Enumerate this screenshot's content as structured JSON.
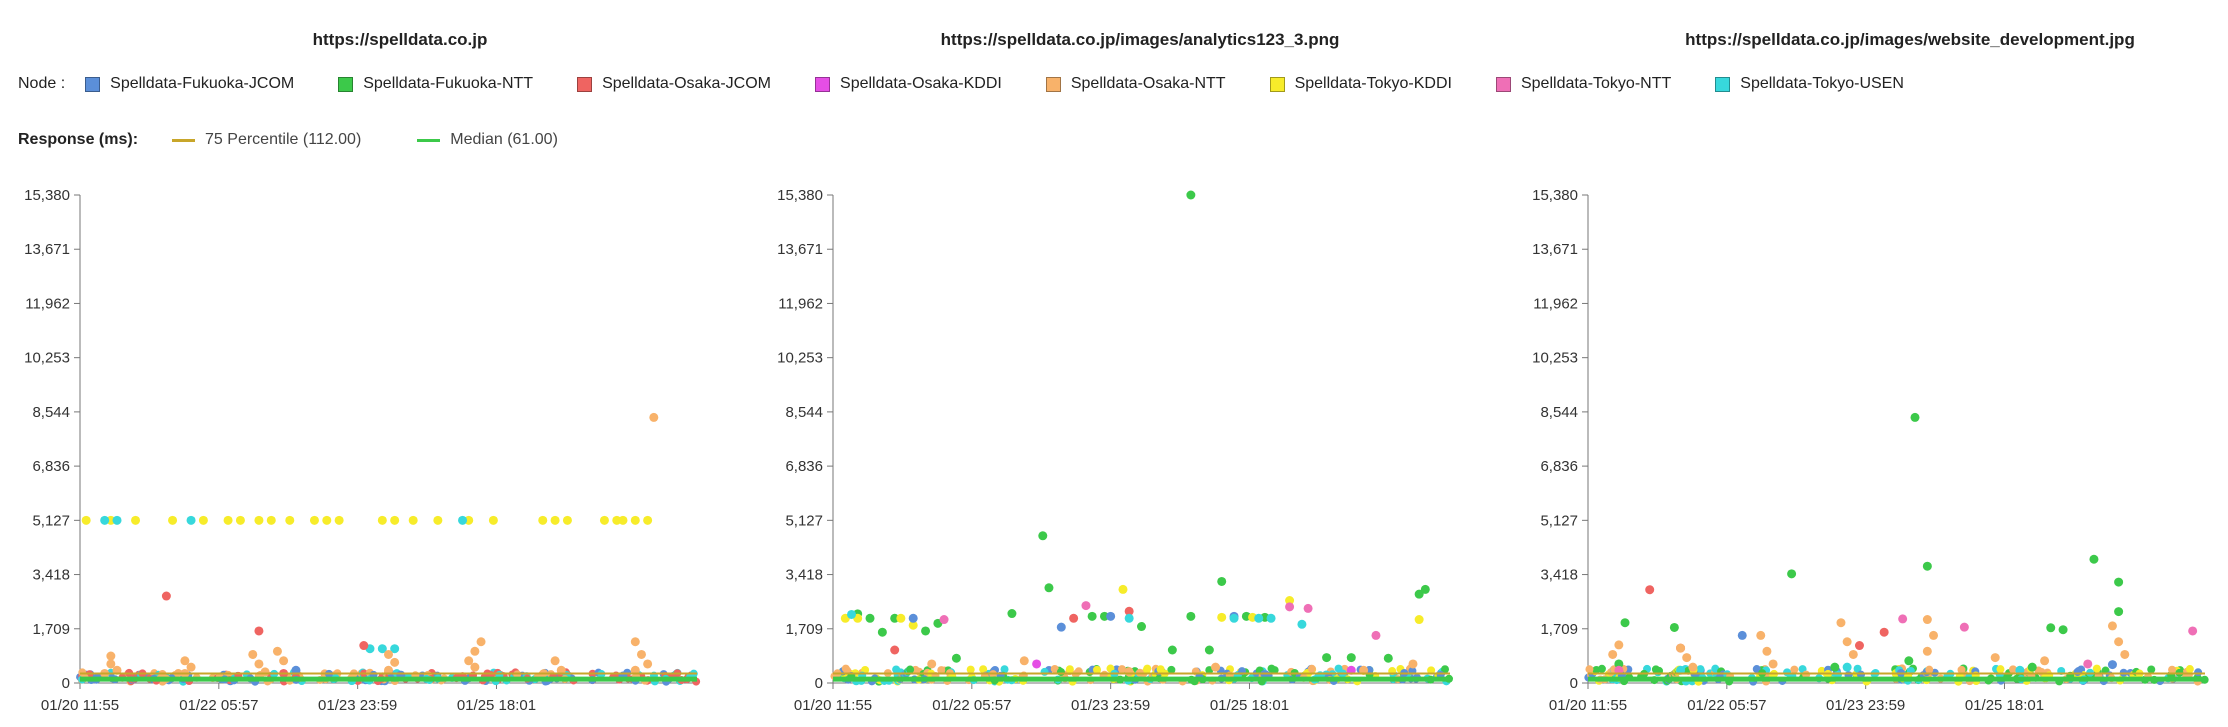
{
  "legend": {
    "label": "Node :",
    "nodes": [
      {
        "name": "Spelldata-Fukuoka-JCOM",
        "color": "#5b8fd9"
      },
      {
        "name": "Spelldata-Fukuoka-NTT",
        "color": "#3cc94a"
      },
      {
        "name": "Spelldata-Osaka-JCOM",
        "color": "#ef6461"
      },
      {
        "name": "Spelldata-Osaka-KDDI",
        "color": "#e54ee5"
      },
      {
        "name": "Spelldata-Osaka-NTT",
        "color": "#f8b26a"
      },
      {
        "name": "Spelldata-Tokyo-KDDI",
        "color": "#f7ec2a"
      },
      {
        "name": "Spelldata-Tokyo-NTT",
        "color": "#ef6fb6"
      },
      {
        "name": "Spelldata-Tokyo-USEN",
        "color": "#37d8dc"
      }
    ]
  },
  "response": {
    "label": "Response (ms):",
    "p75": {
      "label": "75 Percentile (112.00)",
      "color": "#c8a62a"
    },
    "median": {
      "label": "Median (61.00)",
      "color": "#3cc94a"
    }
  },
  "chart_data": [
    {
      "type": "scatter",
      "title": "https://spelldata.co.jp",
      "ylim": [
        0,
        15380
      ],
      "y_ticks": [
        "0",
        "1,709",
        "3,418",
        "5,127",
        "6,836",
        "8,544",
        "10,253",
        "11,962",
        "13,671",
        "15,380"
      ],
      "x_ticks": [
        "01/20 11:55",
        "01/22 05:57",
        "01/23 23:59",
        "01/25 18:01"
      ],
      "xlim": [
        0,
        100
      ],
      "series": [
        {
          "name": "Spelldata-Tokyo-KDDI",
          "points": [
            [
              1,
              5127
            ],
            [
              5,
              5127
            ],
            [
              9,
              5127
            ],
            [
              15,
              5127
            ],
            [
              20,
              5127
            ],
            [
              24,
              5127
            ],
            [
              26,
              5127
            ],
            [
              29,
              5127
            ],
            [
              31,
              5127
            ],
            [
              34,
              5127
            ],
            [
              38,
              5127
            ],
            [
              40,
              5127
            ],
            [
              42,
              5127
            ],
            [
              49,
              5127
            ],
            [
              51,
              5127
            ],
            [
              54,
              5127
            ],
            [
              58,
              5127
            ],
            [
              63,
              5127
            ],
            [
              67,
              5127
            ],
            [
              75,
              5127
            ],
            [
              77,
              5127
            ],
            [
              79,
              5127
            ],
            [
              85,
              5127
            ],
            [
              87,
              5127
            ],
            [
              88,
              5127
            ],
            [
              90,
              5127
            ],
            [
              92,
              5127
            ]
          ]
        },
        {
          "name": "Spelldata-Tokyo-USEN",
          "points": [
            [
              4,
              5127
            ],
            [
              6,
              5127
            ],
            [
              18,
              5127
            ],
            [
              62,
              5127
            ],
            [
              47,
              1080
            ],
            [
              49,
              1080
            ],
            [
              51,
              1080
            ]
          ]
        },
        {
          "name": "Spelldata-Osaka-NTT",
          "points": [
            [
              93,
              8370
            ],
            [
              5,
              850
            ],
            [
              5,
              600
            ],
            [
              6,
              400
            ],
            [
              4,
              300
            ],
            [
              17,
              700
            ],
            [
              18,
              500
            ],
            [
              17,
              300
            ],
            [
              28,
              900
            ],
            [
              29,
              600
            ],
            [
              30,
              350
            ],
            [
              32,
              1000
            ],
            [
              33,
              700
            ],
            [
              50,
              900
            ],
            [
              51,
              650
            ],
            [
              50,
              400
            ],
            [
              63,
              700
            ],
            [
              64,
              1000
            ],
            [
              65,
              1300
            ],
            [
              64,
              500
            ],
            [
              77,
              700
            ],
            [
              78,
              400
            ],
            [
              90,
              1300
            ],
            [
              91,
              900
            ],
            [
              92,
              600
            ],
            [
              90,
              400
            ]
          ]
        },
        {
          "name": "Spelldata-Osaka-JCOM",
          "points": [
            [
              14,
              2740
            ],
            [
              29,
              1640
            ],
            [
              46,
              1180
            ],
            [
              33,
              300
            ],
            [
              62,
              200
            ]
          ]
        },
        {
          "name": "Spelldata-Fukuoka-JCOM",
          "points": [
            [
              35,
              400
            ],
            [
              52,
              250
            ],
            [
              88,
              220
            ]
          ]
        }
      ]
    },
    {
      "type": "scatter",
      "title": "https://spelldata.co.jp/images/analytics123_3.png",
      "ylim": [
        0,
        15380
      ],
      "y_ticks": [
        "0",
        "1,709",
        "3,418",
        "5,127",
        "6,836",
        "8,544",
        "10,253",
        "11,962",
        "13,671",
        "15,380"
      ],
      "x_ticks": [
        "01/20 11:55",
        "01/22 05:57",
        "01/23 23:59",
        "01/25 18:01"
      ],
      "xlim": [
        0,
        100
      ],
      "series": [
        {
          "name": "Spelldata-Fukuoka-NTT",
          "points": [
            [
              58,
              15380
            ],
            [
              34,
              4640
            ],
            [
              4,
              2180
            ],
            [
              6,
              2040
            ],
            [
              8,
              1600
            ],
            [
              10,
              2040
            ],
            [
              15,
              1640
            ],
            [
              17,
              1880
            ],
            [
              20,
              780
            ],
            [
              29,
              2190
            ],
            [
              35,
              3000
            ],
            [
              42,
              2100
            ],
            [
              44,
              2100
            ],
            [
              50,
              1780
            ],
            [
              55,
              1040
            ],
            [
              58,
              2100
            ],
            [
              61,
              1040
            ],
            [
              63,
              3200
            ],
            [
              67,
              2100
            ],
            [
              70,
              2070
            ],
            [
              80,
              800
            ],
            [
              84,
              800
            ],
            [
              90,
              780
            ],
            [
              95,
              2800
            ],
            [
              96,
              2950
            ]
          ]
        },
        {
          "name": "Spelldata-Tokyo-KDDI",
          "points": [
            [
              2,
              2040
            ],
            [
              4,
              2040
            ],
            [
              11,
              2040
            ],
            [
              13,
              1820
            ],
            [
              47,
              2950
            ],
            [
              63,
              2070
            ],
            [
              68,
              2070
            ],
            [
              74,
              2600
            ],
            [
              95,
              2000
            ]
          ]
        },
        {
          "name": "Spelldata-Fukuoka-JCOM",
          "points": [
            [
              13,
              2040
            ],
            [
              37,
              1760
            ],
            [
              45,
              2100
            ],
            [
              65,
              2100
            ]
          ]
        },
        {
          "name": "Spelldata-Tokyo-NTT",
          "points": [
            [
              18,
              2000
            ],
            [
              41,
              2440
            ],
            [
              74,
              2400
            ],
            [
              77,
              2350
            ],
            [
              88,
              1500
            ]
          ]
        },
        {
          "name": "Spelldata-Osaka-JCOM",
          "points": [
            [
              10,
              1040
            ],
            [
              39,
              2040
            ],
            [
              48,
              2260
            ]
          ]
        },
        {
          "name": "Spelldata-Tokyo-USEN",
          "points": [
            [
              3,
              2160
            ],
            [
              48,
              2040
            ],
            [
              65,
              2040
            ],
            [
              69,
              2040
            ],
            [
              71,
              2040
            ],
            [
              76,
              1850
            ]
          ]
        },
        {
          "name": "Spelldata-Osaka-NTT",
          "points": [
            [
              16,
              600
            ],
            [
              31,
              700
            ],
            [
              48,
              350
            ],
            [
              62,
              500
            ],
            [
              86,
              400
            ],
            [
              94,
              600
            ]
          ]
        },
        {
          "name": "Spelldata-Osaka-KDDI",
          "points": [
            [
              84,
              400
            ],
            [
              33,
              600
            ]
          ]
        }
      ]
    },
    {
      "type": "scatter",
      "title": "https://spelldata.co.jp/images/website_development.jpg",
      "ylim": [
        0,
        15380
      ],
      "y_ticks": [
        "0",
        "1,709",
        "3,418",
        "5,127",
        "6,836",
        "8,544",
        "10,253",
        "11,962",
        "13,671",
        "15,380"
      ],
      "x_ticks": [
        "01/20 11:55",
        "01/22 05:57",
        "01/23 23:59",
        "01/25 18:01"
      ],
      "xlim": [
        0,
        100
      ],
      "series": [
        {
          "name": "Spelldata-Fukuoka-NTT",
          "points": [
            [
              53,
              8370
            ],
            [
              6,
              1900
            ],
            [
              14,
              1750
            ],
            [
              33,
              3440
            ],
            [
              55,
              3680
            ],
            [
              82,
              3900
            ],
            [
              86,
              3180
            ],
            [
              86,
              2250
            ],
            [
              75,
              1740
            ],
            [
              77,
              1680
            ],
            [
              5,
              600
            ],
            [
              40,
              500
            ],
            [
              52,
              700
            ],
            [
              72,
              500
            ]
          ]
        },
        {
          "name": "Spelldata-Osaka-JCOM",
          "points": [
            [
              10,
              2940
            ],
            [
              48,
              1600
            ],
            [
              44,
              1180
            ],
            [
              15,
              1100
            ]
          ]
        },
        {
          "name": "Spelldata-Tokyo-NTT",
          "points": [
            [
              51,
              2020
            ],
            [
              61,
              1760
            ],
            [
              98,
              1640
            ],
            [
              5,
              400
            ],
            [
              81,
              600
            ]
          ]
        },
        {
          "name": "Spelldata-Fukuoka-JCOM",
          "points": [
            [
              25,
              1500
            ],
            [
              85,
              580
            ]
          ]
        },
        {
          "name": "Spelldata-Osaka-NTT",
          "points": [
            [
              4,
              900
            ],
            [
              5,
              1200
            ],
            [
              15,
              1100
            ],
            [
              16,
              800
            ],
            [
              17,
              500
            ],
            [
              28,
              1500
            ],
            [
              29,
              1000
            ],
            [
              30,
              600
            ],
            [
              41,
              1900
            ],
            [
              42,
              1300
            ],
            [
              43,
              900
            ],
            [
              55,
              2000
            ],
            [
              56,
              1500
            ],
            [
              55,
              1000
            ],
            [
              66,
              800
            ],
            [
              74,
              700
            ],
            [
              85,
              1800
            ],
            [
              86,
              1300
            ],
            [
              87,
              900
            ]
          ]
        },
        {
          "name": "Spelldata-Tokyo-USEN",
          "points": [
            [
              15,
              400
            ],
            [
              42,
              500
            ],
            [
              70,
              400
            ]
          ]
        }
      ]
    }
  ]
}
